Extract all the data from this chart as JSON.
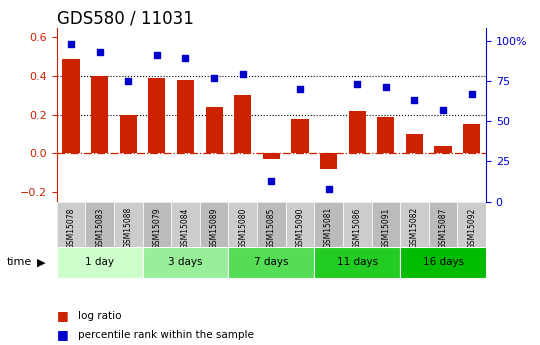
{
  "title": "GDS580 / 11031",
  "samples": [
    "GSM15078",
    "GSM15083",
    "GSM15088",
    "GSM15079",
    "GSM15084",
    "GSM15089",
    "GSM15080",
    "GSM15085",
    "GSM15090",
    "GSM15081",
    "GSM15086",
    "GSM15091",
    "GSM15082",
    "GSM15087",
    "GSM15092"
  ],
  "log_ratio": [
    0.49,
    0.4,
    0.2,
    0.39,
    0.38,
    0.24,
    0.3,
    -0.03,
    0.18,
    -0.08,
    0.22,
    0.19,
    0.1,
    0.04,
    0.15
  ],
  "pct_rank": [
    98,
    93,
    75,
    91,
    89,
    77,
    79,
    13,
    70,
    8,
    73,
    71,
    63,
    57,
    67
  ],
  "bar_color": "#cc2200",
  "dot_color": "#0000cc",
  "groups": [
    {
      "label": "1 day",
      "start": 0,
      "end": 3,
      "color": "#ccffcc"
    },
    {
      "label": "3 days",
      "start": 3,
      "end": 6,
      "color": "#99ee99"
    },
    {
      "label": "7 days",
      "start": 6,
      "end": 9,
      "color": "#55dd55"
    },
    {
      "label": "11 days",
      "start": 9,
      "end": 12,
      "color": "#22cc22"
    },
    {
      "label": "16 days",
      "start": 12,
      "end": 15,
      "color": "#00bb00"
    }
  ],
  "ylim_left": [
    -0.25,
    0.65
  ],
  "ylim_right": [
    0,
    108
  ],
  "yticks_left": [
    -0.2,
    0.0,
    0.2,
    0.4,
    0.6
  ],
  "yticks_right": [
    0,
    25,
    50,
    75,
    100
  ],
  "ytick_labels_right": [
    "0",
    "25",
    "50",
    "75",
    "100%"
  ],
  "hlines_dotted": [
    0.2,
    0.4
  ],
  "zero_line_color": "#cc2200",
  "grid_color": "#000000",
  "bg_color": "#ffffff",
  "legend_items": [
    {
      "label": "log ratio",
      "color": "#cc2200"
    },
    {
      "label": "percentile rank within the sample",
      "color": "#0000cc"
    }
  ],
  "time_label": "time",
  "title_fontsize": 12,
  "tick_fontsize": 8,
  "sample_fontsize": 5.5,
  "group_fontsize": 7.5,
  "legend_fontsize": 7.5
}
